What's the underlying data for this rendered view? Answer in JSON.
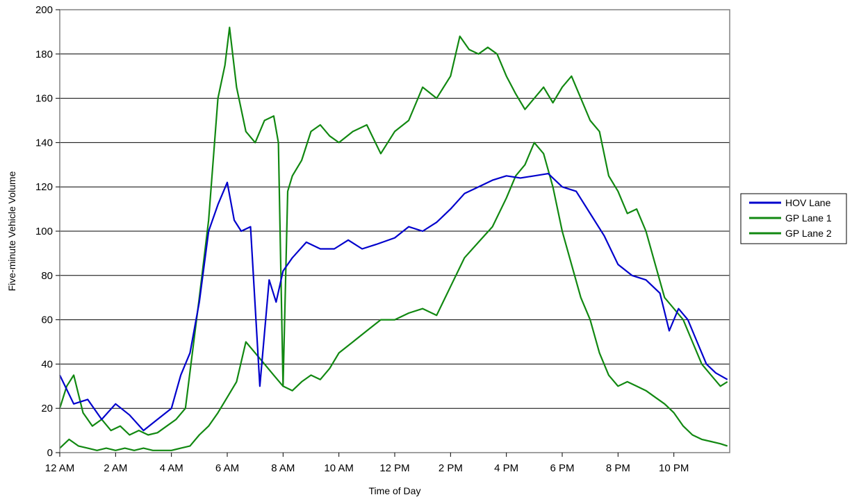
{
  "chart_data": {
    "type": "line",
    "title": "",
    "xlabel": "Time of Day",
    "ylabel": "Five-minute Vehicle Volume",
    "xlim": [
      0,
      288
    ],
    "ylim": [
      0,
      200
    ],
    "y_ticks": [
      0,
      20,
      40,
      60,
      80,
      100,
      120,
      140,
      160,
      180,
      200
    ],
    "x_tick_labels": [
      "12 AM",
      "2 AM",
      "4 AM",
      "6 AM",
      "8 AM",
      "10 AM",
      "12 PM",
      "2 PM",
      "4 PM",
      "6 PM",
      "8 PM",
      "10 PM"
    ],
    "x_tick_positions": [
      0,
      24,
      48,
      72,
      96,
      120,
      144,
      168,
      192,
      216,
      240,
      264
    ],
    "grid": "horizontal",
    "legend_position": "right",
    "series": [
      {
        "name": "HOV Lane",
        "color": "#0000cc",
        "x": [
          0,
          6,
          12,
          18,
          24,
          30,
          36,
          42,
          48,
          52,
          56,
          60,
          64,
          68,
          72,
          75,
          78,
          82,
          86,
          90,
          93,
          96,
          100,
          106,
          112,
          118,
          124,
          130,
          136,
          144,
          150,
          156,
          162,
          168,
          174,
          180,
          186,
          192,
          198,
          204,
          210,
          216,
          222,
          228,
          234,
          240,
          246,
          252,
          258,
          262,
          266,
          270,
          274,
          278,
          282,
          287
        ],
        "values": [
          35,
          22,
          24,
          15,
          22,
          17,
          10,
          15,
          20,
          35,
          45,
          68,
          100,
          112,
          122,
          105,
          100,
          102,
          30,
          78,
          68,
          82,
          88,
          95,
          92,
          92,
          96,
          92,
          94,
          97,
          102,
          100,
          104,
          110,
          117,
          120,
          123,
          125,
          124,
          125,
          126,
          120,
          118,
          108,
          98,
          85,
          80,
          78,
          72,
          55,
          65,
          60,
          50,
          40,
          36,
          33
        ]
      },
      {
        "name": "GP Lane 1",
        "color": "#118811",
        "x": [
          0,
          3,
          6,
          10,
          14,
          18,
          22,
          26,
          30,
          34,
          38,
          42,
          46,
          50,
          54,
          57,
          60,
          64,
          68,
          71,
          73,
          76,
          80,
          84,
          88,
          92,
          94,
          96,
          98,
          100,
          104,
          108,
          112,
          116,
          120,
          126,
          132,
          138,
          144,
          150,
          156,
          162,
          168,
          172,
          176,
          180,
          184,
          188,
          192,
          196,
          200,
          204,
          208,
          212,
          216,
          220,
          224,
          228,
          232,
          236,
          240,
          244,
          248,
          252,
          256,
          260,
          264,
          268,
          272,
          276,
          280,
          284,
          287
        ],
        "values": [
          20,
          30,
          35,
          18,
          12,
          15,
          10,
          12,
          8,
          10,
          8,
          9,
          12,
          15,
          20,
          45,
          70,
          105,
          160,
          175,
          192,
          165,
          145,
          140,
          150,
          152,
          140,
          30,
          118,
          125,
          132,
          145,
          148,
          143,
          140,
          145,
          148,
          135,
          145,
          150,
          165,
          160,
          170,
          188,
          182,
          180,
          183,
          180,
          170,
          162,
          155,
          160,
          165,
          158,
          165,
          170,
          160,
          150,
          145,
          125,
          118,
          108,
          110,
          100,
          85,
          70,
          65,
          60,
          50,
          40,
          35,
          30,
          32
        ]
      },
      {
        "name": "GP Lane 2",
        "color": "#118811",
        "x": [
          0,
          4,
          8,
          12,
          16,
          20,
          24,
          28,
          32,
          36,
          40,
          44,
          48,
          52,
          56,
          60,
          64,
          68,
          72,
          76,
          80,
          84,
          88,
          92,
          96,
          100,
          104,
          108,
          112,
          116,
          120,
          126,
          132,
          138,
          144,
          150,
          156,
          162,
          168,
          174,
          180,
          186,
          192,
          196,
          200,
          204,
          208,
          212,
          216,
          220,
          224,
          228,
          232,
          236,
          240,
          244,
          248,
          252,
          256,
          260,
          264,
          268,
          272,
          276,
          280,
          284,
          287
        ],
        "values": [
          2,
          6,
          3,
          2,
          1,
          2,
          1,
          2,
          1,
          2,
          1,
          1,
          1,
          2,
          3,
          8,
          12,
          18,
          25,
          32,
          50,
          45,
          40,
          35,
          30,
          28,
          32,
          35,
          33,
          38,
          45,
          50,
          55,
          60,
          60,
          63,
          65,
          62,
          75,
          88,
          95,
          102,
          115,
          125,
          130,
          140,
          135,
          120,
          100,
          85,
          70,
          60,
          45,
          35,
          30,
          32,
          30,
          28,
          25,
          22,
          18,
          12,
          8,
          6,
          5,
          4,
          3
        ]
      }
    ]
  }
}
